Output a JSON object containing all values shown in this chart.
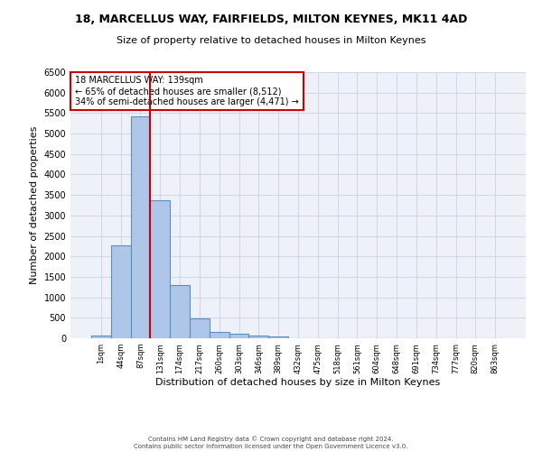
{
  "title": "18, MARCELLUS WAY, FAIRFIELDS, MILTON KEYNES, MK11 4AD",
  "subtitle": "Size of property relative to detached houses in Milton Keynes",
  "xlabel": "Distribution of detached houses by size in Milton Keynes",
  "ylabel": "Number of detached properties",
  "footer_line1": "Contains HM Land Registry data © Crown copyright and database right 2024.",
  "footer_line2": "Contains public sector information licensed under the Open Government Licence v3.0.",
  "bin_labels": [
    "1sqm",
    "44sqm",
    "87sqm",
    "131sqm",
    "174sqm",
    "217sqm",
    "260sqm",
    "303sqm",
    "346sqm",
    "389sqm",
    "432sqm",
    "475sqm",
    "518sqm",
    "561sqm",
    "604sqm",
    "648sqm",
    "691sqm",
    "734sqm",
    "777sqm",
    "820sqm",
    "863sqm"
  ],
  "bar_values": [
    60,
    2280,
    5430,
    3380,
    1300,
    475,
    165,
    100,
    60,
    40,
    10,
    0,
    0,
    0,
    0,
    0,
    0,
    0,
    0,
    0,
    0
  ],
  "bar_color": "#aec6e8",
  "bar_edge_color": "#5a8fc0",
  "grid_color": "#d0d8e8",
  "background_color": "#eef2f8",
  "annotation_line1": "18 MARCELLUS WAY: 139sqm",
  "annotation_line2": "← 65% of detached houses are smaller (8,512)",
  "annotation_line3": "34% of semi-detached houses are larger (4,471) →",
  "vline_x_index": 2.5,
  "vline_color": "#cc0000",
  "annotation_box_color": "#ffffff",
  "annotation_box_edge_color": "#cc0000",
  "ylim": [
    0,
    6500
  ],
  "yticks": [
    0,
    500,
    1000,
    1500,
    2000,
    2500,
    3000,
    3500,
    4000,
    4500,
    5000,
    5500,
    6000,
    6500
  ],
  "title_fontsize": 9,
  "subtitle_fontsize": 8,
  "ylabel_fontsize": 8,
  "xlabel_fontsize": 8,
  "ytick_fontsize": 7,
  "xtick_fontsize": 6,
  "annot_fontsize": 7,
  "footer_fontsize": 5
}
